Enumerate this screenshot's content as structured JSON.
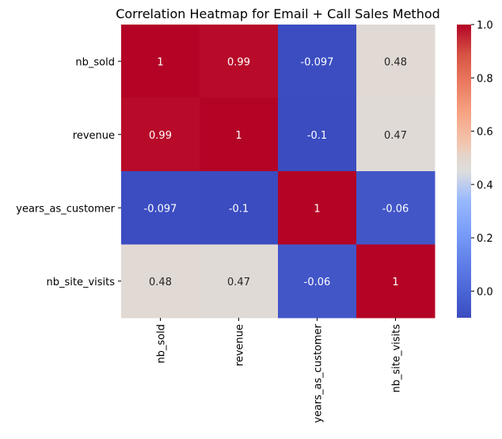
{
  "chart_data": {
    "type": "heatmap",
    "title": "Correlation Heatmap for Email + Call Sales Method",
    "row_labels": [
      "nb_sold",
      "revenue",
      "years_as_customer",
      "nb_site_visits"
    ],
    "col_labels": [
      "nb_sold",
      "revenue",
      "years_as_customer",
      "nb_site_visits"
    ],
    "values": [
      [
        1,
        0.99,
        -0.097,
        0.48
      ],
      [
        0.99,
        1,
        -0.1,
        0.47
      ],
      [
        -0.097,
        -0.1,
        1,
        -0.06
      ],
      [
        0.48,
        0.47,
        -0.06,
        1
      ]
    ],
    "annotations": [
      [
        "1",
        "0.99",
        "-0.097",
        "0.48"
      ],
      [
        "0.99",
        "1",
        "-0.1",
        "0.47"
      ],
      [
        "-0.097",
        "-0.1",
        "1",
        "-0.06"
      ],
      [
        "0.48",
        "0.47",
        "-0.06",
        "1"
      ]
    ],
    "colormap": "coolwarm",
    "vmin": -0.1,
    "vmax": 1.0,
    "colorbar_ticks": [
      {
        "value": 0.0,
        "label": "0.0"
      },
      {
        "value": 0.2,
        "label": "0.2"
      },
      {
        "value": 0.4,
        "label": "0.4"
      },
      {
        "value": 0.6,
        "label": "0.6"
      },
      {
        "value": 0.8,
        "label": "0.8"
      },
      {
        "value": 1.0,
        "label": "1.0"
      }
    ],
    "colors": {
      "text_on_dark": "#ffffff",
      "text_on_light": "#262626"
    }
  }
}
